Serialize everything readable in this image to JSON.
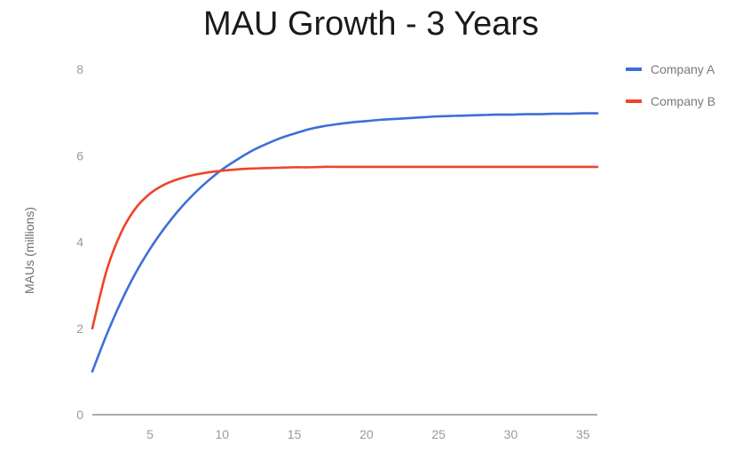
{
  "chart_data": {
    "type": "line",
    "title": "MAU Growth - 3 Years",
    "xlabel": "",
    "ylabel": "MAUs (millions)",
    "xlim": [
      1,
      36
    ],
    "ylim": [
      0,
      8
    ],
    "x_ticks": [
      5,
      10,
      15,
      20,
      25,
      30,
      35
    ],
    "y_ticks": [
      0,
      2,
      4,
      6,
      8
    ],
    "grid": false,
    "legend_position": "right",
    "x": [
      1,
      2,
      3,
      4,
      5,
      6,
      7,
      8,
      9,
      10,
      11,
      12,
      13,
      14,
      15,
      16,
      17,
      18,
      19,
      20,
      21,
      22,
      23,
      24,
      25,
      26,
      27,
      28,
      29,
      30,
      31,
      32,
      33,
      34,
      35,
      36
    ],
    "series": [
      {
        "name": "Company A",
        "color": "#3d6fd9",
        "values": [
          1.0,
          1.86,
          2.62,
          3.28,
          3.84,
          4.32,
          4.74,
          5.1,
          5.41,
          5.68,
          5.9,
          6.1,
          6.26,
          6.4,
          6.51,
          6.61,
          6.68,
          6.73,
          6.77,
          6.8,
          6.83,
          6.85,
          6.87,
          6.89,
          6.91,
          6.92,
          6.93,
          6.94,
          6.95,
          6.95,
          6.96,
          6.96,
          6.97,
          6.97,
          6.98,
          6.98
        ]
      },
      {
        "name": "Company B",
        "color": "#f0432a",
        "values": [
          2.0,
          3.35,
          4.22,
          4.78,
          5.12,
          5.33,
          5.46,
          5.55,
          5.61,
          5.65,
          5.68,
          5.7,
          5.71,
          5.72,
          5.73,
          5.73,
          5.74,
          5.74,
          5.74,
          5.74,
          5.74,
          5.74,
          5.74,
          5.74,
          5.74,
          5.74,
          5.74,
          5.74,
          5.74,
          5.74,
          5.74,
          5.74,
          5.74,
          5.74,
          5.74,
          5.74
        ]
      }
    ]
  }
}
